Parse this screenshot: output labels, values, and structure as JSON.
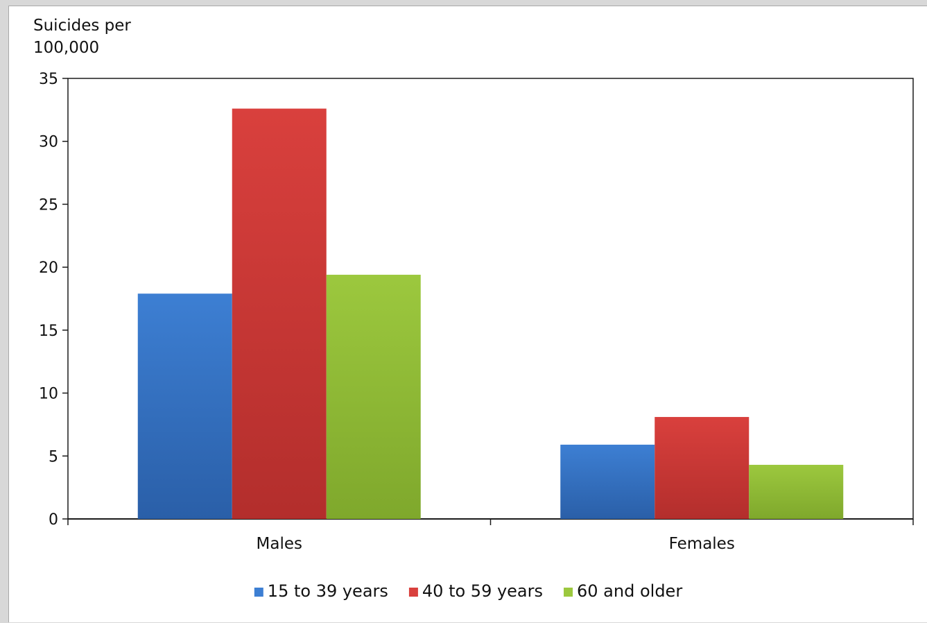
{
  "chart_data": {
    "type": "bar",
    "ylabel": "Suicides per 100,000",
    "ylabel_lines": [
      "Suicides per",
      "100,000"
    ],
    "xlabel": "",
    "title": "",
    "ylim": [
      0,
      35
    ],
    "yticks": [
      0,
      5,
      10,
      15,
      20,
      25,
      30,
      35
    ],
    "categories": [
      "Males",
      "Females"
    ],
    "series": [
      {
        "name": "15 to 39 years",
        "values": [
          17.9,
          5.9
        ]
      },
      {
        "name": "40 to 59 years",
        "values": [
          32.6,
          8.1
        ]
      },
      {
        "name": "60 and older",
        "values": [
          19.4,
          4.3
        ]
      }
    ],
    "legend_position": "bottom",
    "grid": false
  },
  "colors": {
    "series": [
      "#3d7fd3",
      "#d9403d",
      "#9cc83e"
    ],
    "series_dark": [
      "#2a5fa8",
      "#b32e2c",
      "#7fa82c"
    ],
    "axis": "#1a1a1a"
  }
}
